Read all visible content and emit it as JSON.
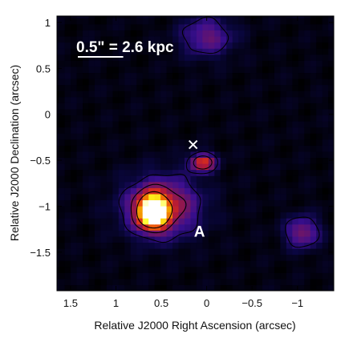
{
  "chart_data": {
    "type": "heatmap",
    "xlabel": "Relative J2000 Right Ascension (arcsec)",
    "ylabel": "Relative J2000 Declination (arcsec)",
    "xlim": [
      1.65,
      -1.4
    ],
    "ylim": [
      -1.92,
      1.07
    ],
    "x_axis_direction": "decreasing",
    "x_ticks": [
      {
        "value": 1.5,
        "label": "1.5"
      },
      {
        "value": 1.0,
        "label": "1"
      },
      {
        "value": 0.5,
        "label": "0.5"
      },
      {
        "value": 0.0,
        "label": "0"
      },
      {
        "value": -0.5,
        "label": "−0.5"
      },
      {
        "value": -1.0,
        "label": "−1"
      }
    ],
    "y_ticks": [
      {
        "value": 1.0,
        "label": "1"
      },
      {
        "value": 0.5,
        "label": "0.5"
      },
      {
        "value": 0.0,
        "label": "0"
      },
      {
        "value": -0.5,
        "label": "−0.5"
      },
      {
        "value": -1.0,
        "label": "−1"
      },
      {
        "value": -1.5,
        "label": "−1.5"
      }
    ],
    "scale_bar": {
      "label": "0.5\" = 2.6 kpc",
      "length_arcsec": 0.5
    },
    "annotations": [
      {
        "type": "text",
        "text": "A",
        "x": 0.08,
        "y": -1.33
      },
      {
        "type": "cross",
        "x": 0.15,
        "y": -0.33
      }
    ],
    "emission_sources": [
      {
        "x": 0.6,
        "y": -1.06,
        "peak": 1.0,
        "sigma_x": 0.11,
        "sigma_y": 0.12
      },
      {
        "x": 0.5,
        "y": -1.0,
        "peak": 0.5,
        "sigma_x": 0.28,
        "sigma_y": 0.22
      },
      {
        "x": 0.05,
        "y": -0.52,
        "peak": 0.55,
        "sigma_x": 0.1,
        "sigma_y": 0.07
      },
      {
        "x": -1.05,
        "y": -1.28,
        "peak": 0.35,
        "sigma_x": 0.13,
        "sigma_y": 0.12
      },
      {
        "x": 0.0,
        "y": 0.85,
        "peak": 0.3,
        "sigma_x": 0.2,
        "sigma_y": 0.15
      }
    ],
    "contours": [
      {
        "level": 0.18,
        "color": "#000000"
      },
      {
        "level": 0.38,
        "color": "#000000"
      },
      {
        "level": 0.62,
        "color": "#000000"
      }
    ],
    "colormap": [
      "#000000",
      "#0a0640",
      "#3a0f90",
      "#761660",
      "#b51a36",
      "#e83a10",
      "#f5a000",
      "#ffff20",
      "#ffffff"
    ],
    "grid": false,
    "legend": "none"
  }
}
